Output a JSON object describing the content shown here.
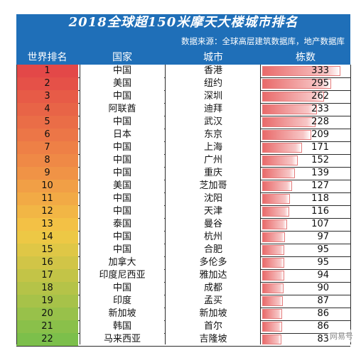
{
  "title": "2018全球超150米摩天大楼城市排名",
  "source": "数据来源：全球高层建筑数据库，地产数据库",
  "headers": {
    "rank": "世界排名",
    "country": "国家",
    "city": "城市",
    "count": "栋数"
  },
  "watermark": "网易号",
  "colors": {
    "header_bg": "#1f6fb8",
    "bar": "#e96a6a",
    "rank_top": "#e34848",
    "rank_mid": "#f3c845",
    "rank_bottom": "#7cbf4b"
  },
  "chart_data": {
    "type": "table",
    "title": "2018全球超150米摩天大楼城市排名",
    "columns": [
      "世界排名",
      "国家",
      "城市",
      "栋数"
    ],
    "rows": [
      {
        "rank": "1",
        "country": "中国",
        "city": "香港",
        "count": 333
      },
      {
        "rank": "2",
        "country": "美国",
        "city": "纽约",
        "count": 295
      },
      {
        "rank": "3",
        "country": "中国",
        "city": "深圳",
        "count": 262
      },
      {
        "rank": "4",
        "country": "阿联酋",
        "city": "迪拜",
        "count": 233
      },
      {
        "rank": "5",
        "country": "中国",
        "city": "武汉",
        "count": 228
      },
      {
        "rank": "6",
        "country": "日本",
        "city": "东京",
        "count": 209
      },
      {
        "rank": "7",
        "country": "中国",
        "city": "上海",
        "count": 171
      },
      {
        "rank": "8",
        "country": "中国",
        "city": "广州",
        "count": 152
      },
      {
        "rank": "9",
        "country": "中国",
        "city": "重庆",
        "count": 139
      },
      {
        "rank": "10",
        "country": "美国",
        "city": "芝加哥",
        "count": 127
      },
      {
        "rank": "11",
        "country": "中国",
        "city": "沈阳",
        "count": 118
      },
      {
        "rank": "12",
        "country": "中国",
        "city": "天津",
        "count": 116
      },
      {
        "rank": "13",
        "country": "泰国",
        "city": "曼谷",
        "count": 107
      },
      {
        "rank": "14",
        "country": "中国",
        "city": "杭州",
        "count": 97
      },
      {
        "rank": "15",
        "country": "中国",
        "city": "合肥",
        "count": 95
      },
      {
        "rank": "16",
        "country": "加拿大",
        "city": "多伦多",
        "count": 95
      },
      {
        "rank": "17",
        "country": "印度尼西亚",
        "city": "雅加达",
        "count": 94
      },
      {
        "rank": "18",
        "country": "中国",
        "city": "成都",
        "count": 90
      },
      {
        "rank": "19",
        "country": "印度",
        "city": "孟买",
        "count": 87
      },
      {
        "rank": "20",
        "country": "新加坡",
        "city": "新加坡",
        "count": 86
      },
      {
        "rank": "21",
        "country": "韩国",
        "city": "首尔",
        "count": 86
      },
      {
        "rank": "22",
        "country": "马来西亚",
        "city": "吉隆坡",
        "count": 83
      }
    ],
    "max_value": 333
  }
}
